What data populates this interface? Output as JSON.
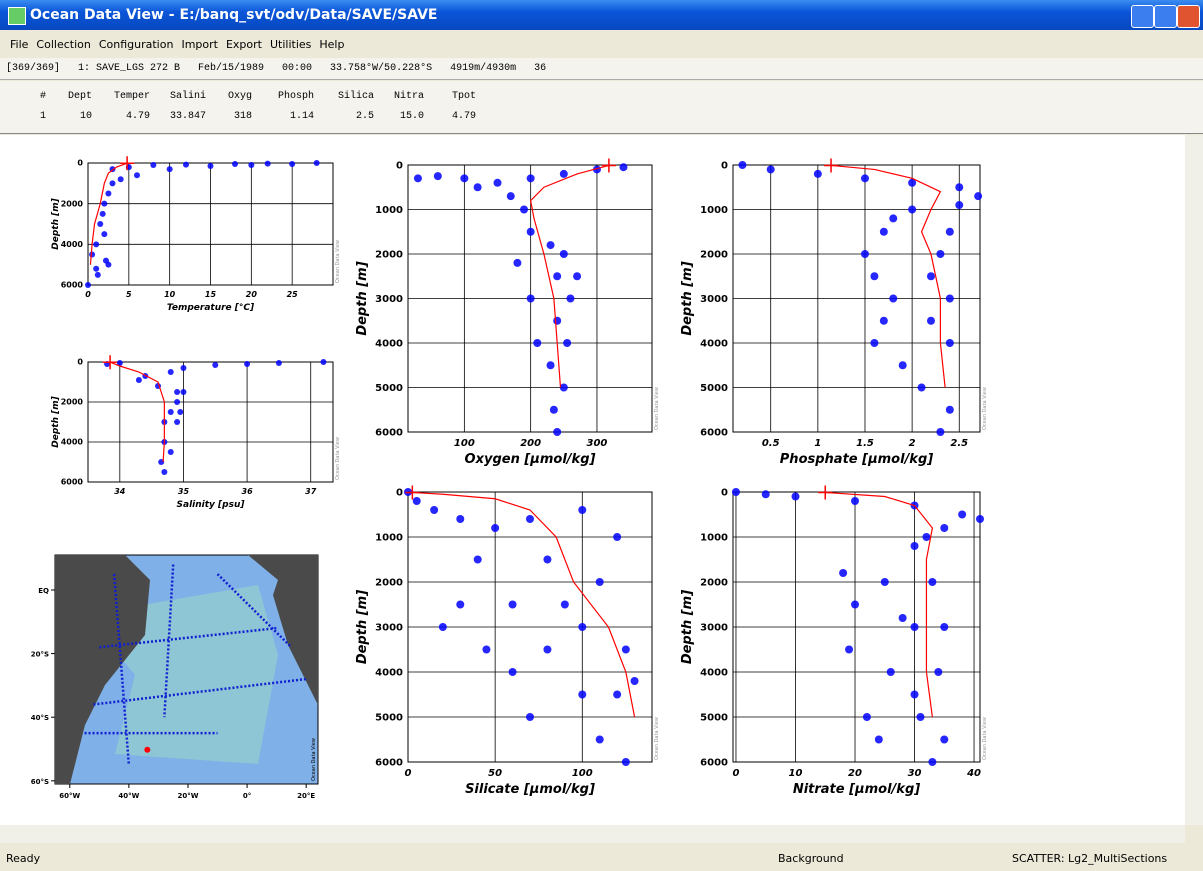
{
  "window_title": "Ocean Data View - E:/banq_svt/odv/Data/SAVE/SAVE",
  "menu": [
    "File",
    "Collection",
    "Configuration",
    "Import",
    "Export",
    "Utilities",
    "Help"
  ],
  "station_line": "[369/369]   1: SAVE_LGS 272 B   Feb/15/1989   00:00   33.758°W/50.228°S   4919m/4930m   36",
  "station_table": {
    "columns": [
      "#",
      "Dept",
      "Temper",
      "Salini",
      "Oxyg",
      "Phosph",
      "Silica",
      "Nitra",
      "Tpot"
    ],
    "rows": [
      [
        "1",
        "10",
        "4.79",
        "33.847",
        "318",
        "1.14",
        "2.5",
        "15.0",
        "4.79"
      ]
    ]
  },
  "status": [
    "Ready",
    "Background",
    "SCATTER: Lg2_MultiSections"
  ],
  "chart_data": [
    {
      "type": "scatter",
      "xlabel": "Temperature [°C]",
      "ylabel": "Depth [m]",
      "watermark": "Ocean Data View",
      "xlim": [
        0,
        30
      ],
      "xticks": [
        0,
        5,
        10,
        15,
        20,
        25
      ],
      "ylim": [
        0,
        6000
      ],
      "yticks": [
        0,
        2000,
        4000,
        6000
      ],
      "y_reversed": true,
      "grid": true,
      "point_color": "#0000ff",
      "profile_color": "#ff0000",
      "points": {
        "x": [
          28,
          25,
          20,
          15,
          10,
          6,
          4,
          3,
          2.5,
          2,
          1.8,
          1.5,
          2.0,
          1.0,
          0.5,
          2.5,
          1.2,
          0.0,
          3.0,
          5.0,
          8,
          12,
          18,
          22,
          1.0,
          2.2
        ],
        "y": [
          0,
          50,
          100,
          150,
          300,
          600,
          800,
          1000,
          1500,
          2000,
          2500,
          3000,
          3500,
          4000,
          4500,
          5000,
          5500,
          6000,
          300,
          200,
          100,
          80,
          50,
          30,
          5200,
          4800
        ]
      },
      "profile": {
        "x": [
          4.8,
          3.5,
          2.5,
          2.0,
          1.5,
          0.8,
          0.5,
          0.3
        ],
        "y": [
          10,
          200,
          500,
          1000,
          2000,
          3000,
          4000,
          5000
        ]
      },
      "station": {
        "x": 4.79,
        "y": 10
      }
    },
    {
      "type": "scatter",
      "xlabel": "Salinity [psu]",
      "ylabel": "Depth [m]",
      "watermark": "Ocean Data View",
      "xlim": [
        33.5,
        37.35
      ],
      "xticks": [
        34,
        35,
        36,
        37
      ],
      "ylim": [
        0,
        6000
      ],
      "yticks": [
        0,
        2000,
        4000,
        6000
      ],
      "y_reversed": true,
      "grid": true,
      "point_color": "#0000ff",
      "profile_color": "#ff0000",
      "points": {
        "x": [
          37.2,
          36.5,
          36,
          35.5,
          35,
          34.8,
          34.4,
          34.3,
          34.6,
          34.9,
          34.9,
          34.8,
          34.7,
          34.9,
          34.7,
          34.8,
          34.65,
          34.7,
          34.0,
          33.8,
          35,
          34.95
        ],
        "y": [
          0,
          50,
          100,
          150,
          300,
          500,
          700,
          900,
          1200,
          1500,
          2000,
          2500,
          3000,
          3000,
          4000,
          4500,
          5000,
          5500,
          50,
          100,
          1500,
          2500
        ]
      },
      "profile": {
        "x": [
          33.85,
          34.0,
          34.3,
          34.6,
          34.7,
          34.7,
          34.7,
          34.68
        ],
        "y": [
          10,
          200,
          500,
          1000,
          2000,
          3000,
          4000,
          5000
        ]
      },
      "station": {
        "x": 33.847,
        "y": 10
      }
    },
    {
      "type": "scatter",
      "xlabel": "Oxygen [µmol/kg]",
      "ylabel": "Depth [m]",
      "watermark": "Ocean Data View",
      "xlim": [
        15,
        383
      ],
      "xticks": [
        100,
        200,
        300
      ],
      "ylim": [
        0,
        6000
      ],
      "yticks": [
        0,
        1000,
        2000,
        3000,
        4000,
        5000,
        6000
      ],
      "y_reversed": true,
      "grid": true,
      "point_color": "#0000ff",
      "profile_color": "#ff0000",
      "points": {
        "x": [
          30,
          60,
          100,
          150,
          200,
          250,
          300,
          340,
          120,
          170,
          190,
          200,
          230,
          250,
          240,
          200,
          260,
          240,
          210,
          255,
          230,
          250,
          235,
          240,
          180,
          270
        ],
        "y": [
          300,
          250,
          300,
          400,
          300,
          200,
          100,
          50,
          500,
          700,
          1000,
          1500,
          1800,
          2000,
          2500,
          3000,
          3000,
          3500,
          4000,
          4000,
          4500,
          5000,
          5500,
          6000,
          2200,
          2500
        ]
      },
      "profile": {
        "x": [
          318,
          270,
          220,
          200,
          205,
          220,
          235,
          240,
          245
        ],
        "y": [
          10,
          200,
          500,
          800,
          1200,
          2000,
          3000,
          4000,
          5000
        ]
      },
      "station": {
        "x": 318,
        "y": 10
      }
    },
    {
      "type": "scatter",
      "xlabel": "Phosphate [µmol/kg]",
      "ylabel": "Depth [m]",
      "watermark": "Ocean Data View",
      "xlim": [
        0.1,
        2.72
      ],
      "xticks": [
        0.5,
        1,
        1.5,
        2,
        2.5
      ],
      "ylim": [
        0,
        6000
      ],
      "yticks": [
        0,
        1000,
        2000,
        3000,
        4000,
        5000,
        6000
      ],
      "y_reversed": true,
      "grid": true,
      "point_color": "#0000ff",
      "profile_color": "#ff0000",
      "points": {
        "x": [
          0.2,
          0.5,
          1.0,
          1.5,
          2.0,
          2.5,
          2.7,
          2.5,
          2.0,
          1.8,
          1.7,
          2.4,
          1.5,
          2.3,
          1.6,
          2.2,
          1.8,
          2.4,
          1.7,
          2.2,
          1.6,
          2.4,
          1.9,
          2.1,
          2.4,
          2.3
        ],
        "y": [
          0,
          100,
          200,
          300,
          400,
          500,
          700,
          900,
          1000,
          1200,
          1500,
          1500,
          2000,
          2000,
          2500,
          2500,
          3000,
          3000,
          3500,
          3500,
          4000,
          4000,
          4500,
          5000,
          5500,
          6000
        ]
      },
      "profile": {
        "x": [
          1.14,
          1.6,
          2.0,
          2.3,
          2.2,
          2.1,
          2.2,
          2.3,
          2.3,
          2.35
        ],
        "y": [
          10,
          100,
          300,
          600,
          1000,
          1500,
          2000,
          3000,
          4000,
          5000
        ]
      },
      "station": {
        "x": 1.14,
        "y": 10
      }
    },
    {
      "type": "scatter",
      "xlabel": "Silicate [µmol/kg]",
      "ylabel": "Depth [m]",
      "watermark": "Ocean Data View",
      "xlim": [
        0,
        140
      ],
      "xticks": [
        0,
        50,
        100
      ],
      "ylim": [
        0,
        6000
      ],
      "yticks": [
        0,
        1000,
        2000,
        3000,
        4000,
        5000,
        6000
      ],
      "y_reversed": true,
      "grid": true,
      "point_color": "#0000ff",
      "profile_color": "#ff0000",
      "points": {
        "x": [
          0,
          5,
          15,
          30,
          50,
          70,
          100,
          120,
          40,
          80,
          110,
          30,
          60,
          100,
          45,
          80,
          125,
          60,
          100,
          120,
          70,
          110,
          125,
          20,
          90,
          130
        ],
        "y": [
          0,
          200,
          400,
          600,
          800,
          600,
          400,
          1000,
          1500,
          1500,
          2000,
          2500,
          2500,
          3000,
          3500,
          3500,
          3500,
          4000,
          4500,
          4500,
          5000,
          5500,
          6000,
          3000,
          2500,
          4200
        ]
      },
      "profile": {
        "x": [
          2.5,
          20,
          50,
          70,
          85,
          95,
          115,
          125,
          130
        ],
        "y": [
          10,
          50,
          150,
          400,
          1000,
          2000,
          3000,
          4000,
          5000
        ]
      },
      "station": {
        "x": 2.5,
        "y": 10
      }
    },
    {
      "type": "scatter",
      "xlabel": "Nitrate [µmol/kg]",
      "ylabel": "Depth [m]",
      "watermark": "Ocean Data View",
      "xlim": [
        -0.5,
        41
      ],
      "xticks": [
        0,
        10,
        20,
        30,
        40
      ],
      "ylim": [
        0,
        6000
      ],
      "yticks": [
        0,
        1000,
        2000,
        3000,
        4000,
        5000,
        6000
      ],
      "y_reversed": true,
      "grid": true,
      "point_color": "#0000ff",
      "profile_color": "#ff0000",
      "points": {
        "x": [
          0,
          5,
          10,
          20,
          30,
          38,
          41,
          35,
          32,
          30,
          18,
          25,
          33,
          20,
          30,
          35,
          19,
          26,
          34,
          22,
          31,
          35,
          24,
          33,
          30,
          28
        ],
        "y": [
          0,
          50,
          100,
          200,
          300,
          500,
          600,
          800,
          1000,
          1200,
          1800,
          2000,
          2000,
          2500,
          3000,
          3000,
          3500,
          4000,
          4000,
          5000,
          5000,
          5500,
          5500,
          6000,
          4500,
          2800
        ]
      },
      "profile": {
        "x": [
          15,
          25,
          30,
          33,
          32,
          32,
          32,
          32,
          33
        ],
        "y": [
          10,
          100,
          300,
          800,
          1500,
          2000,
          3000,
          4000,
          5000
        ]
      },
      "station": {
        "x": 15.0,
        "y": 10
      }
    },
    {
      "type": "map",
      "watermark": "Ocean Data View",
      "xlim": [
        -65,
        24
      ],
      "xticks": [
        {
          "value": -60,
          "label": "60°W"
        },
        {
          "value": -40,
          "label": "40°W"
        },
        {
          "value": -20,
          "label": "20°W"
        },
        {
          "value": 0,
          "label": "0°"
        },
        {
          "value": 20,
          "label": "20°E"
        }
      ],
      "ylim": [
        -61,
        11
      ],
      "yticks": [
        {
          "value": 0,
          "label": "EQ"
        },
        {
          "value": -20,
          "label": "20°S"
        },
        {
          "value": -40,
          "label": "40°S"
        },
        {
          "value": -60,
          "label": "60°S"
        }
      ],
      "station": {
        "x": -33.758,
        "y": -50.228
      }
    }
  ]
}
